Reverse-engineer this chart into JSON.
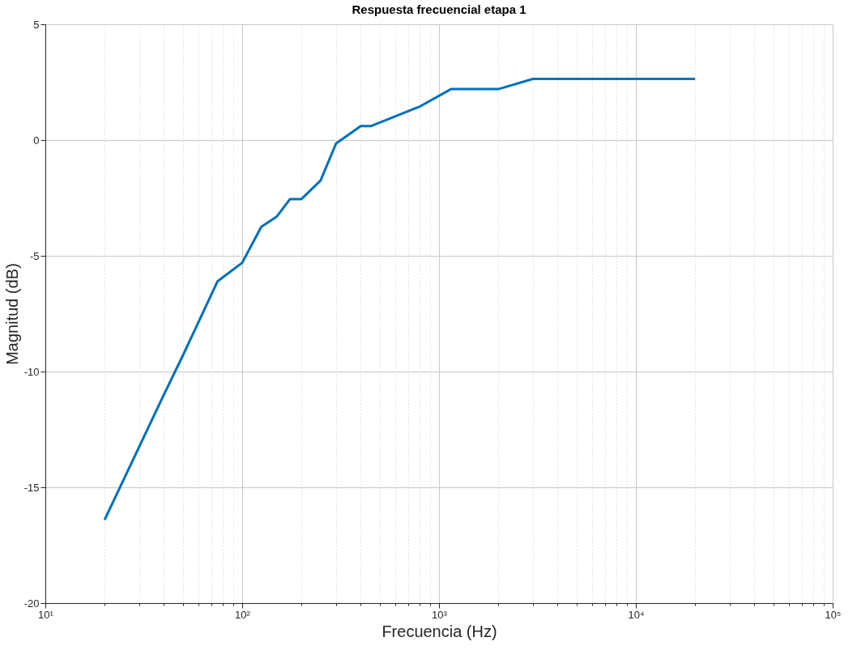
{
  "chart_data": {
    "type": "line",
    "title": "Respuesta frecuencial   etapa 1",
    "xlabel": "Frecuencia (Hz)",
    "ylabel": "Magnitud (dB)",
    "log": "x",
    "grid": true,
    "line_style": "solid",
    "marker": "none",
    "xlim": [
      10,
      100000
    ],
    "ylim": [
      -20,
      5
    ],
    "xticks": [
      {
        "value": 10,
        "label": "10¹"
      },
      {
        "value": 20,
        "label": null
      },
      {
        "value": 30,
        "label": null
      },
      {
        "value": 40,
        "label": null
      },
      {
        "value": 50,
        "label": null
      },
      {
        "value": 60,
        "label": null
      },
      {
        "value": 70,
        "label": null
      },
      {
        "value": 80,
        "label": null
      },
      {
        "value": 90,
        "label": null
      },
      {
        "value": 100,
        "label": "10²"
      },
      {
        "value": 200,
        "label": null
      },
      {
        "value": 300,
        "label": null
      },
      {
        "value": 400,
        "label": null
      },
      {
        "value": 500,
        "label": null
      },
      {
        "value": 600,
        "label": null
      },
      {
        "value": 700,
        "label": null
      },
      {
        "value": 800,
        "label": null
      },
      {
        "value": 900,
        "label": null
      },
      {
        "value": 1000,
        "label": "10³"
      },
      {
        "value": 2000,
        "label": null
      },
      {
        "value": 3000,
        "label": null
      },
      {
        "value": 4000,
        "label": null
      },
      {
        "value": 5000,
        "label": null
      },
      {
        "value": 6000,
        "label": null
      },
      {
        "value": 7000,
        "label": null
      },
      {
        "value": 8000,
        "label": null
      },
      {
        "value": 9000,
        "label": null
      },
      {
        "value": 10000,
        "label": "10⁴"
      },
      {
        "value": 20000,
        "label": null
      },
      {
        "value": 30000,
        "label": null
      },
      {
        "value": 40000,
        "label": null
      },
      {
        "value": 50000,
        "label": null
      },
      {
        "value": 60000,
        "label": null
      },
      {
        "value": 70000,
        "label": null
      },
      {
        "value": 80000,
        "label": null
      },
      {
        "value": 90000,
        "label": null
      },
      {
        "value": 100000,
        "label": "10⁵"
      }
    ],
    "yticks": [
      -20,
      -15,
      -10,
      -5,
      0,
      5
    ],
    "series": [
      {
        "color": "#0072bd",
        "x": [
          20,
          40,
          50,
          75,
          100,
          125,
          150,
          175,
          200,
          250,
          300,
          350,
          400,
          450,
          800,
          1150,
          2000,
          3000,
          20000
        ],
        "values": [
          -16.4,
          -11,
          -9.3,
          -6.1,
          -5.3,
          -3.75,
          -3.3,
          -2.55,
          -2.55,
          -1.75,
          -0.15,
          0.25,
          0.6,
          0.6,
          1.45,
          2.2,
          2.2,
          2.64,
          2.64
        ]
      }
    ]
  }
}
